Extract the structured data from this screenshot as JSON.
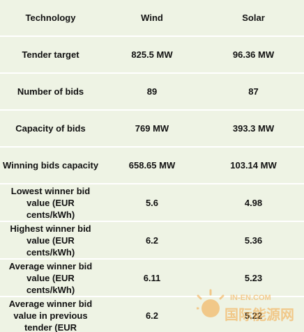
{
  "table": {
    "header": {
      "technology": "Technology",
      "wind": "Wind",
      "solar": "Solar"
    },
    "rows": [
      {
        "label": "Tender target",
        "wind": "825.5 MW",
        "solar": "96.36 MW"
      },
      {
        "label": "Number of bids",
        "wind": "89",
        "solar": "87"
      },
      {
        "label": "Capacity of bids",
        "wind": "769 MW",
        "solar": "393.3 MW"
      },
      {
        "label": "Winning bids capacity",
        "wind": "658.65 MW",
        "solar": "103.14 MW"
      },
      {
        "label": "Lowest winner bid value (EUR cents/kWh)",
        "wind": "5.6",
        "solar": "4.98"
      },
      {
        "label": "Highest winner bid value (EUR cents/kWh)",
        "wind": "6.2",
        "solar": "5.36"
      },
      {
        "label": "Average winner bid value (EUR cents/kWh)",
        "wind": "6.11",
        "solar": "5.23"
      },
      {
        "label": "Average winner bid value in previous tender (EUR",
        "wind": "6.2",
        "solar": "5.22"
      }
    ]
  },
  "watermark": {
    "text_latin": "IN-EN.COM",
    "text_cjk": "国际能源网",
    "color": "#f4a640"
  }
}
